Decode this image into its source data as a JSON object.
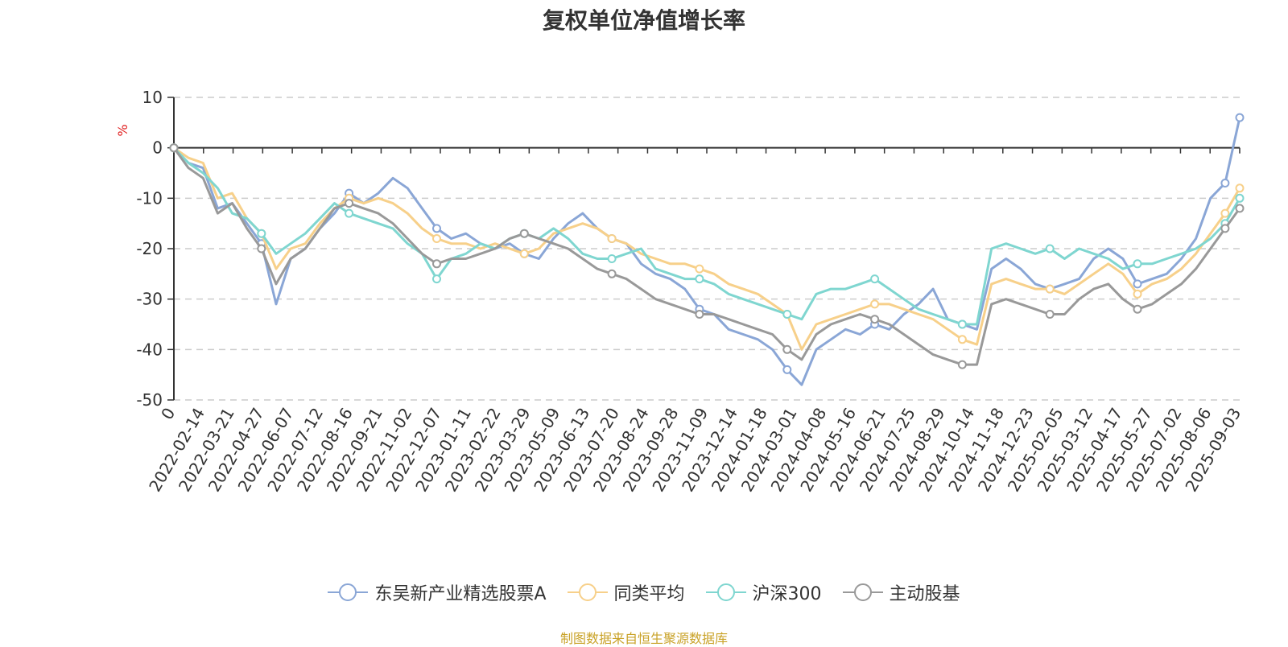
{
  "chart_data": {
    "type": "line",
    "title": "复权单位净值增长率",
    "ylabel": "%",
    "ylim": [
      -50,
      10
    ],
    "yticks": [
      10,
      0,
      -10,
      -20,
      -30,
      -40,
      -50
    ],
    "ytick_labels": [
      "10",
      "0",
      "-10",
      "-20",
      "-30",
      "-40",
      "-50"
    ],
    "x_tick_labels": [
      "0",
      "2022-02-14",
      "2022-03-21",
      "2022-04-27",
      "2022-06-07",
      "2022-07-12",
      "2022-08-16",
      "2022-09-21",
      "2022-11-02",
      "2022-12-07",
      "2023-01-11",
      "2023-02-22",
      "2023-03-29",
      "2023-05-09",
      "2023-06-13",
      "2023-07-20",
      "2023-08-24",
      "2023-09-28",
      "2023-11-09",
      "2023-12-14",
      "2024-01-18",
      "2024-03-01",
      "2024-04-08",
      "2024-05-16",
      "2024-06-21",
      "2024-07-25",
      "2024-08-29",
      "2024-10-14",
      "2024-11-18",
      "2024-12-23",
      "2025-02-05",
      "2025-03-12",
      "2025-04-17",
      "2025-05-27",
      "2025-07-02",
      "2025-08-06",
      "2025-09-03"
    ],
    "grid": true,
    "legend_position": "bottom",
    "series": [
      {
        "name": "东吴新产业精选股票A",
        "color": "#8aa6d6",
        "values": [
          0,
          -3,
          -4,
          -12,
          -11,
          -15,
          -19,
          -31,
          -22,
          -20,
          -16,
          -13,
          -9,
          -11,
          -9,
          -6,
          -8,
          -12,
          -16,
          -18,
          -17,
          -19,
          -20,
          -19,
          -21,
          -22,
          -18,
          -15,
          -13,
          -16,
          -18,
          -19,
          -23,
          -25,
          -26,
          -28,
          -32,
          -33,
          -36,
          -37,
          -38,
          -40,
          -44,
          -47,
          -40,
          -38,
          -36,
          -37,
          -35,
          -36,
          -33,
          -31,
          -28,
          -34,
          -35,
          -36,
          -24,
          -22,
          -24,
          -27,
          -28,
          -27,
          -26,
          -22,
          -20,
          -22,
          -27,
          -26,
          -25,
          -22,
          -18,
          -10,
          -7,
          6
        ]
      },
      {
        "name": "同类平均",
        "color": "#f7d08a",
        "values": [
          0,
          -2,
          -3,
          -10,
          -9,
          -14,
          -17,
          -24,
          -20,
          -19,
          -15,
          -12,
          -10,
          -11,
          -10,
          -11,
          -13,
          -16,
          -18,
          -19,
          -19,
          -20,
          -19,
          -20,
          -21,
          -20,
          -17,
          -16,
          -15,
          -16,
          -18,
          -19,
          -21,
          -22,
          -23,
          -23,
          -24,
          -25,
          -27,
          -28,
          -29,
          -31,
          -33,
          -40,
          -35,
          -34,
          -33,
          -32,
          -31,
          -31,
          -32,
          -33,
          -34,
          -36,
          -38,
          -39,
          -27,
          -26,
          -27,
          -28,
          -28,
          -29,
          -27,
          -25,
          -23,
          -25,
          -29,
          -27,
          -26,
          -24,
          -21,
          -17,
          -13,
          -8
        ]
      },
      {
        "name": "沪深300",
        "color": "#7fd6d0",
        "values": [
          0,
          -3,
          -5,
          -8,
          -13,
          -14,
          -17,
          -21,
          -19,
          -17,
          -14,
          -11,
          -13,
          -14,
          -15,
          -16,
          -19,
          -21,
          -26,
          -22,
          -21,
          -19,
          -20,
          -18,
          -17,
          -18,
          -16,
          -18,
          -21,
          -22,
          -22,
          -21,
          -20,
          -24,
          -25,
          -26,
          -26,
          -27,
          -29,
          -30,
          -31,
          -32,
          -33,
          -34,
          -29,
          -28,
          -28,
          -27,
          -26,
          -28,
          -30,
          -32,
          -33,
          -34,
          -35,
          -35,
          -20,
          -19,
          -20,
          -21,
          -20,
          -22,
          -20,
          -21,
          -22,
          -24,
          -23,
          -23,
          -22,
          -21,
          -20,
          -18,
          -15,
          -10
        ]
      },
      {
        "name": "主动股基",
        "color": "#999999",
        "values": [
          0,
          -4,
          -6,
          -13,
          -11,
          -16,
          -20,
          -27,
          -22,
          -20,
          -16,
          -12,
          -11,
          -12,
          -13,
          -15,
          -18,
          -21,
          -23,
          -22,
          -22,
          -21,
          -20,
          -18,
          -17,
          -18,
          -19,
          -20,
          -22,
          -24,
          -25,
          -26,
          -28,
          -30,
          -31,
          -32,
          -33,
          -33,
          -34,
          -35,
          -36,
          -37,
          -40,
          -42,
          -37,
          -35,
          -34,
          -33,
          -34,
          -35,
          -37,
          -39,
          -41,
          -42,
          -43,
          -43,
          -31,
          -30,
          -31,
          -32,
          -33,
          -33,
          -30,
          -28,
          -27,
          -30,
          -32,
          -31,
          -29,
          -27,
          -24,
          -20,
          -16,
          -12
        ]
      }
    ]
  },
  "source_text": "制图数据来自恒生聚源数据库"
}
